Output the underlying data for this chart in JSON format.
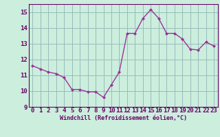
{
  "x": [
    0,
    1,
    2,
    3,
    4,
    5,
    6,
    7,
    8,
    9,
    10,
    11,
    12,
    13,
    14,
    15,
    16,
    17,
    18,
    19,
    20,
    21,
    22,
    23
  ],
  "y": [
    11.6,
    11.4,
    11.2,
    11.1,
    10.85,
    10.1,
    10.1,
    9.95,
    9.95,
    9.6,
    10.4,
    11.2,
    13.65,
    13.65,
    14.6,
    15.15,
    14.6,
    13.65,
    13.65,
    13.3,
    12.65,
    12.6,
    13.1,
    12.85
  ],
  "line_color": "#993399",
  "marker": "D",
  "marker_size": 2.0,
  "bg_color": "#cceedd",
  "grid_color": "#99bbbb",
  "xlabel": "Windchill (Refroidissement éolien,°C)",
  "xlabel_color": "#660066",
  "tick_color": "#660066",
  "ylim": [
    9,
    15.5
  ],
  "xlim": [
    -0.5,
    23.5
  ],
  "yticks": [
    9,
    10,
    11,
    12,
    13,
    14,
    15
  ],
  "xticks": [
    0,
    1,
    2,
    3,
    4,
    5,
    6,
    7,
    8,
    9,
    10,
    11,
    12,
    13,
    14,
    15,
    16,
    17,
    18,
    19,
    20,
    21,
    22,
    23
  ],
  "tick_fontsize": 6.5,
  "xlabel_fontsize": 6.0,
  "linewidth": 1.0
}
